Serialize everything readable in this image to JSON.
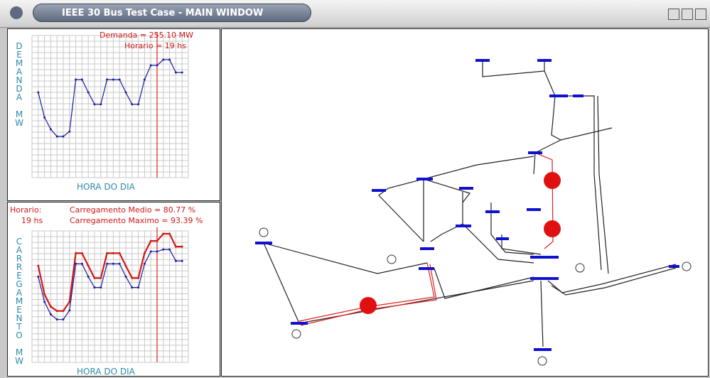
{
  "window": {
    "title": "IEEE 30 Bus Test Case - MAIN WINDOW"
  },
  "chart_data": [
    {
      "type": "line",
      "annotations": [
        "Demanda = 255.10 MW",
        "Horario = 19 hs"
      ],
      "y_label": "DEMANDA MW",
      "x_label": "HORA DO DIA",
      "x": [
        0,
        1,
        2,
        3,
        4,
        5,
        6,
        7,
        8,
        9,
        10,
        11,
        12,
        13,
        14,
        15,
        16,
        17,
        18,
        19,
        20,
        21,
        22,
        23
      ],
      "series": [
        {
          "color": "#1a1aa0",
          "values": [
            15,
            10.6,
            8.5,
            7.25,
            7.25,
            8.1,
            17.25,
            17.25,
            15,
            12.9,
            12.9,
            17.25,
            17.25,
            17.25,
            15,
            12.9,
            12.9,
            17.25,
            19.75,
            19.75,
            20.75,
            20.75,
            18.5,
            18.5
          ]
        }
      ],
      "xlim": [
        -1,
        24
      ],
      "ylim": [
        0,
        25
      ],
      "xticks": [
        -1,
        0,
        1,
        2,
        3,
        4,
        5,
        6,
        7,
        8,
        9,
        10,
        11,
        12,
        13,
        14,
        15,
        16,
        17,
        18,
        19,
        20,
        21,
        22,
        23,
        24
      ],
      "yticks": [
        0,
        1,
        2,
        3,
        4,
        5,
        6,
        7,
        8,
        9,
        10,
        11,
        12,
        13,
        14,
        15,
        16,
        17,
        18,
        19,
        20,
        21,
        22,
        23,
        24,
        25
      ],
      "grid": true,
      "marker_x": 19,
      "marker_color": "#e02020"
    },
    {
      "type": "line",
      "annotations": [
        "Horario:",
        "19 hs",
        "Carregamento Medio = 80.77 %",
        "Carregamento Maximo = 93.39 %"
      ],
      "y_label": "CARREGAMENTO MW",
      "x_label": "HORA DO DIA",
      "x": [
        0,
        1,
        2,
        3,
        4,
        5,
        6,
        7,
        8,
        9,
        10,
        11,
        12,
        13,
        14,
        15,
        16,
        17,
        18,
        19,
        20,
        21,
        22,
        23
      ],
      "series": [
        {
          "color": "#d01818",
          "values": [
            16.9,
            11.9,
            9.75,
            9,
            9,
            10.6,
            19.1,
            19.1,
            16.9,
            14.75,
            14.75,
            19.1,
            19.1,
            19.1,
            16.9,
            14.75,
            14.75,
            19.1,
            21.25,
            21.25,
            22.5,
            22.5,
            20.25,
            20.25
          ]
        },
        {
          "color": "#1a1aa0",
          "values": [
            15,
            10.6,
            8.4,
            7.5,
            7.5,
            9.1,
            17.25,
            17.25,
            15,
            13.1,
            13.1,
            17.25,
            17.25,
            17.25,
            15,
            13.1,
            13.1,
            17.25,
            19.4,
            19.4,
            19.75,
            19.75,
            17.75,
            17.75
          ]
        }
      ],
      "xlim": [
        -1,
        24
      ],
      "ylim": [
        0,
        23
      ],
      "xticks": [
        -1,
        0,
        1,
        2,
        3,
        4,
        5,
        6,
        7,
        8,
        9,
        10,
        11,
        12,
        13,
        14,
        15,
        16,
        17,
        18,
        19,
        20,
        21,
        22,
        23,
        24
      ],
      "yticks": [
        0,
        1,
        2,
        3,
        4,
        5,
        6,
        7,
        8,
        9,
        10,
        11,
        12,
        13,
        14,
        15,
        16,
        17,
        18,
        19,
        20,
        21,
        22,
        23
      ],
      "grid": true,
      "marker_x": 19,
      "marker_color": "#e02020"
    }
  ]
}
